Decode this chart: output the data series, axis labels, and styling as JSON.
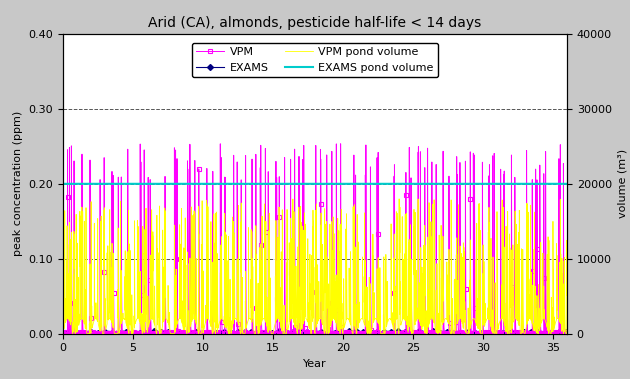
{
  "title": "Arid (CA), almonds, pesticide half-life < 14 days",
  "xlabel": "Year",
  "ylabel_left": "peak concentration (ppm)",
  "ylabel_right": "volume (m³)",
  "xlim": [
    0,
    36
  ],
  "ylim_left": [
    0.0,
    0.4
  ],
  "ylim_right": [
    0,
    40000
  ],
  "yticks_left": [
    0.0,
    0.1,
    0.2,
    0.3,
    0.4
  ],
  "yticks_right": [
    0,
    10000,
    20000,
    30000,
    40000
  ],
  "xticks": [
    0,
    5,
    10,
    15,
    20,
    25,
    30,
    35
  ],
  "exams_pond_volume_value": 20000,
  "vpm_color": "#FF00FF",
  "exams_color": "#000080",
  "vpm_volume_color": "#FFFF00",
  "exams_volume_color": "#00CCCC",
  "background_color": "#FFFFFF",
  "outer_background": "#C8C8C8",
  "grid_color": "#555555",
  "title_fontsize": 10,
  "label_fontsize": 8,
  "tick_fontsize": 8,
  "legend_fontsize": 8,
  "seed": 42,
  "n_years": 36,
  "steps_per_year": 365,
  "vpm_peak_base": 0.23,
  "vpm_peak_variation": 0.025,
  "vpm_volume_peak": 18000,
  "exams_vol": 20000
}
